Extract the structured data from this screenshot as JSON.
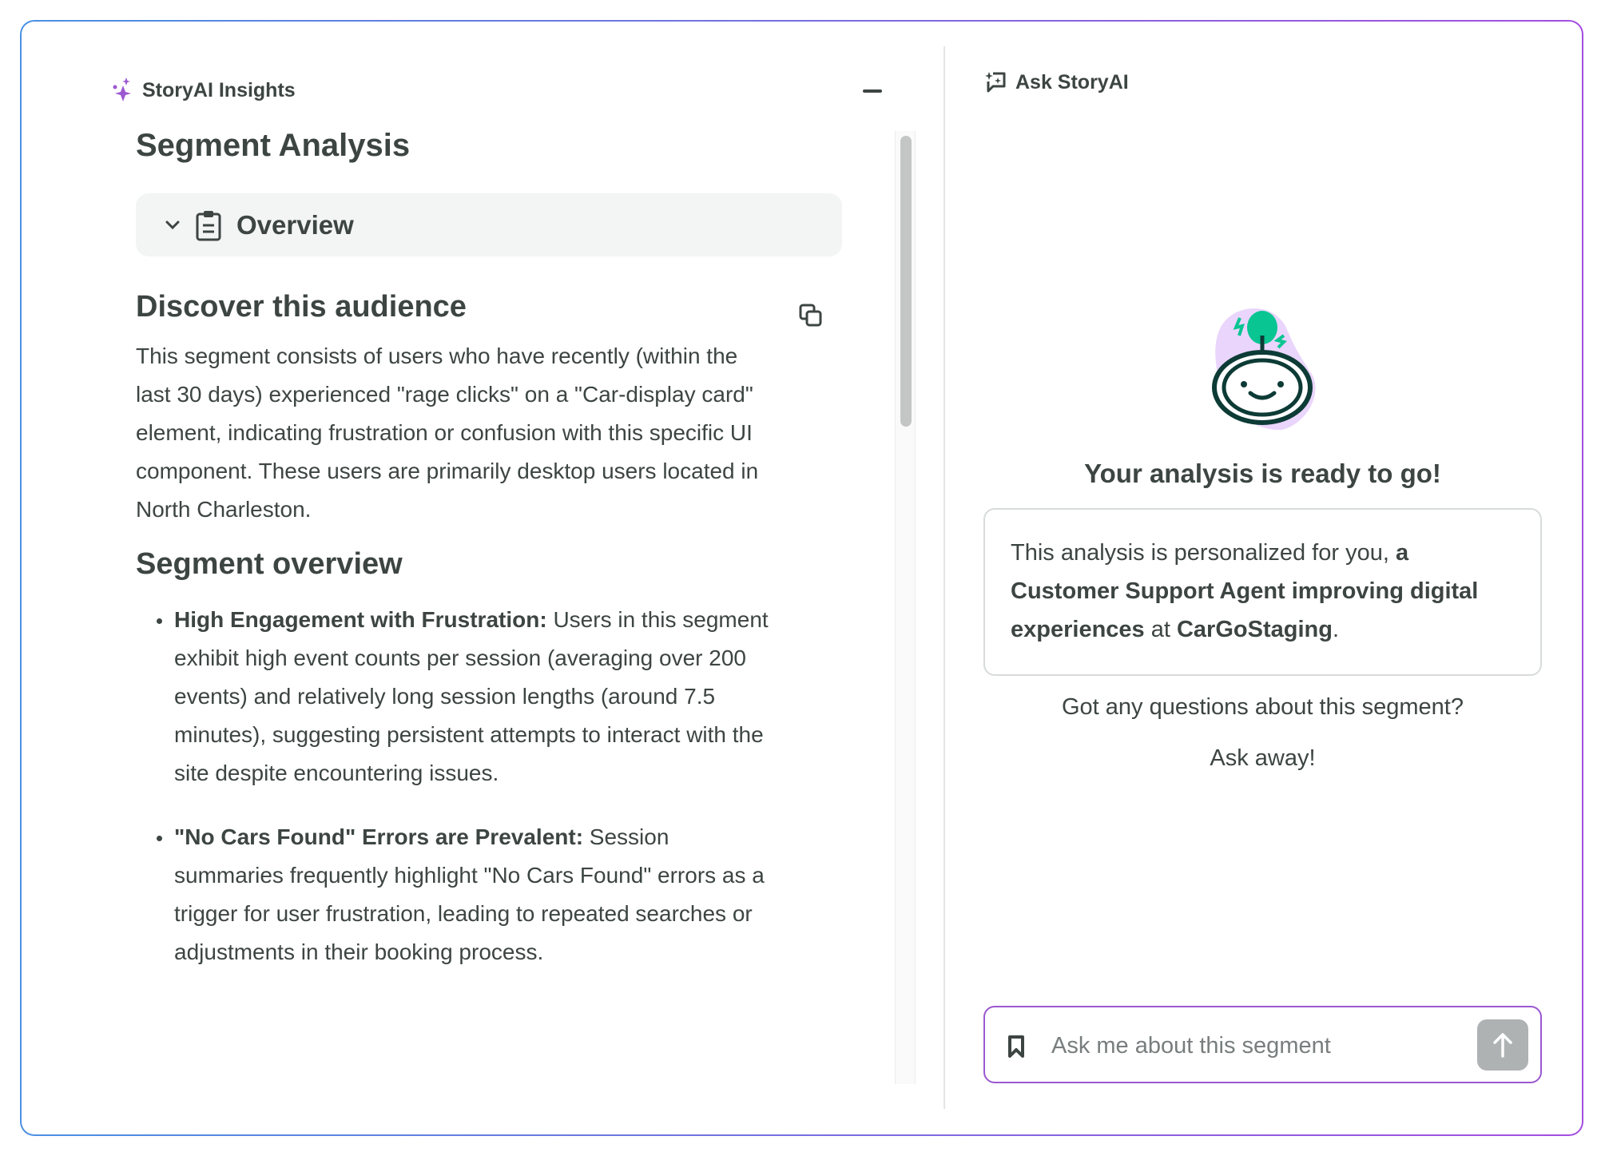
{
  "insights": {
    "header_label": "StoryAI Insights",
    "title": "Segment Analysis",
    "overview_label": "Overview",
    "discover_heading": "Discover this audience",
    "discover_text": "This segment consists of users who have recently (within the last 30 days) experienced \"rage clicks\" on a \"Car-display card\" element, indicating frustration or confusion with this specific UI component. These users are primarily desktop users located in North Charleston.",
    "segment_overview_heading": "Segment overview",
    "bullets": [
      {
        "title": "High Engagement with Frustration:",
        "text": " Users in this segment exhibit high event counts per session (averaging over 200 events) and relatively long session lengths (around 7.5 minutes), suggesting persistent attempts to interact with the site despite encountering issues."
      },
      {
        "title": "\"No Cars Found\" Errors are Prevalent:",
        "text": " Session summaries frequently highlight \"No Cars Found\" errors as a trigger for user frustration, leading to repeated searches or adjustments in their booking process."
      }
    ]
  },
  "ask": {
    "header_label": "Ask StoryAI",
    "ready_text": "Your analysis is ready to go!",
    "personalized": {
      "p1": "This analysis is personalized for you, ",
      "role": "a Customer Support Agent improving digital experiences",
      "p2": " at ",
      "company": "CarGoStaging",
      "p3": "."
    },
    "question_text": "Got any questions about this segment?",
    "ask_away": "Ask away!",
    "input_placeholder": "Ask me about this segment",
    "input_value": ""
  },
  "colors": {
    "accent_purple": "#9b59d0",
    "border_blue": "#4a90e2",
    "robot_green": "#08c592",
    "text": "#3d4543"
  },
  "icons": [
    "sparkle-icon",
    "minimize-icon",
    "chevron-down-icon",
    "clipboard-icon",
    "copy-icon",
    "chat-sparkle-icon",
    "robot-illustration",
    "bookmark-icon",
    "arrow-up-icon"
  ]
}
